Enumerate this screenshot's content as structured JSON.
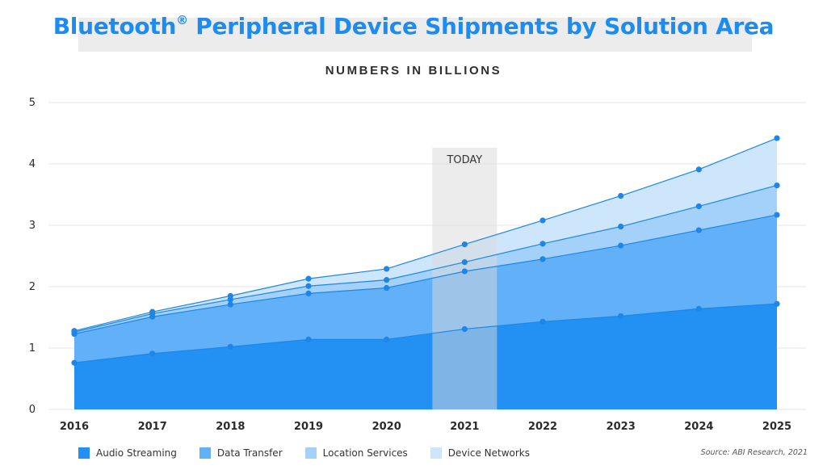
{
  "header": {
    "title": "Bluetooth",
    "title_mark": "®",
    "title_rest": " Peripheral Device Shipments by Solution Area",
    "subtitle": "NUMBERS IN BILLIONS"
  },
  "source": "Source: ABI Research, 2021",
  "chart_data": {
    "type": "area",
    "stacked": true,
    "title": "Bluetooth® Peripheral Device Shipments by Solution Area",
    "subtitle": "NUMBERS IN BILLIONS",
    "x": [
      "2016",
      "2017",
      "2018",
      "2019",
      "2020",
      "2021",
      "2022",
      "2023",
      "2024",
      "2025"
    ],
    "ylim": [
      0,
      5
    ],
    "yticks": [
      "0",
      "1",
      "2",
      "3",
      "4",
      "5"
    ],
    "grid": true,
    "legend": "bottom",
    "annotation": {
      "label": "TODAY",
      "x": "2021"
    },
    "series": [
      {
        "name": "Audio Streaming",
        "color": "#2291f3",
        "values": [
          0.76,
          0.91,
          1.02,
          1.14,
          1.14,
          1.31,
          1.43,
          1.52,
          1.64,
          1.72
        ]
      },
      {
        "name": "Data Transfer",
        "color": "#62b0f7",
        "values": [
          0.47,
          0.6,
          0.69,
          0.75,
          0.84,
          0.94,
          1.02,
          1.15,
          1.28,
          1.45
        ]
      },
      {
        "name": "Location Services",
        "color": "#a4d1fa",
        "values": [
          0.03,
          0.05,
          0.08,
          0.12,
          0.13,
          0.15,
          0.25,
          0.31,
          0.39,
          0.48
        ]
      },
      {
        "name": "Device Networks",
        "color": "#cde6fc",
        "values": [
          0.02,
          0.03,
          0.06,
          0.12,
          0.18,
          0.29,
          0.38,
          0.5,
          0.6,
          0.77
        ]
      }
    ],
    "line_color": "#1d86e8",
    "today_band_color": "#d9d9d9"
  }
}
